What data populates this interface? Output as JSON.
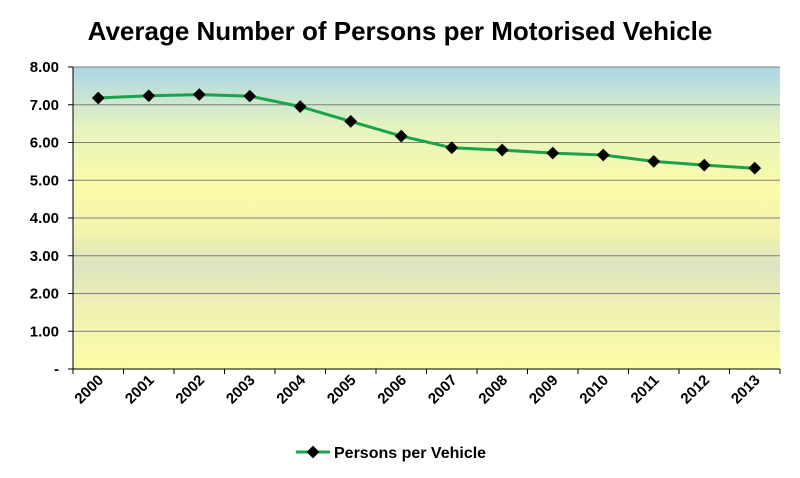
{
  "chart_data": {
    "type": "line",
    "title": "Average Number of Persons per Motorised Vehicle",
    "xlabel": "",
    "ylabel": "",
    "categories": [
      "2000",
      "2001",
      "2002",
      "2003",
      "2004",
      "2005",
      "2006",
      "2007",
      "2008",
      "2009",
      "2010",
      "2011",
      "2012",
      "2013"
    ],
    "series": [
      {
        "name": "Persons per Vehicle",
        "values": [
          7.18,
          7.24,
          7.27,
          7.23,
          6.95,
          6.56,
          6.17,
          5.86,
          5.8,
          5.72,
          5.67,
          5.5,
          5.4,
          5.32
        ]
      }
    ],
    "ylim": [
      0,
      8
    ],
    "y_ticks": [
      "-",
      "1.00",
      "2.00",
      "3.00",
      "4.00",
      "5.00",
      "6.00",
      "7.00",
      "8.00"
    ],
    "grid": true,
    "legend_position": "bottom",
    "colors": {
      "line": "#1aa34a",
      "marker": "#000000",
      "grid": "#7f7f7f",
      "bg_top": "#a9d6e6",
      "bg_mid": "#fbfba8",
      "bg_band": "#dde3c0"
    }
  }
}
